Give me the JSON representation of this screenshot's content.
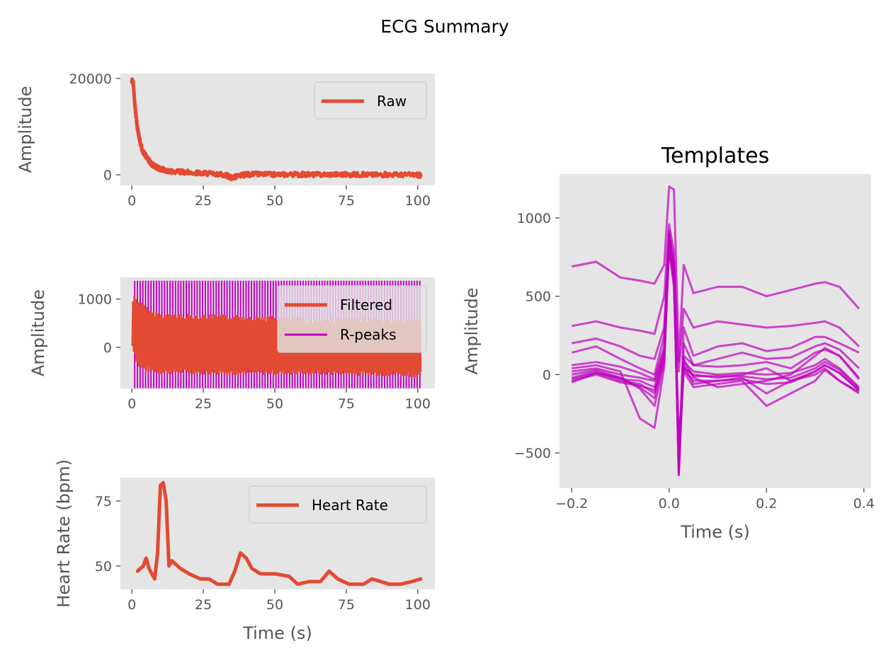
{
  "figure": {
    "suptitle": "ECG Summary"
  },
  "chart_data": [
    {
      "id": "raw",
      "type": "line",
      "title": "",
      "xlabel": "",
      "ylabel": "Amplitude",
      "xlim": [
        -4,
        106
      ],
      "ylim": [
        -2200,
        21000
      ],
      "xticks": [
        0,
        25,
        50,
        75,
        100
      ],
      "xtick_labels": [
        "0",
        "25",
        "50",
        "75",
        "100"
      ],
      "yticks": [
        0,
        20000
      ],
      "ytick_labels": [
        "0",
        "20000"
      ],
      "legend_position": "upper-right",
      "series": [
        {
          "name": "Raw",
          "color": "#e24a33",
          "x": [
            0,
            0.5,
            1,
            1.5,
            2,
            2.5,
            3,
            3.5,
            4,
            5,
            6,
            7,
            8,
            9,
            10,
            12,
            14,
            17,
            20,
            25,
            30,
            33,
            35,
            37,
            40,
            45,
            50,
            55,
            60,
            65,
            70,
            75,
            80,
            85,
            90,
            95,
            100,
            101
          ],
          "y": [
            19500,
            19000,
            15000,
            12000,
            9500,
            8000,
            6500,
            5500,
            4800,
            3800,
            2900,
            2200,
            1800,
            1500,
            1200,
            900,
            700,
            600,
            500,
            300,
            150,
            -100,
            -600,
            -300,
            100,
            100,
            50,
            100,
            50,
            50,
            100,
            50,
            50,
            0,
            50,
            0,
            0,
            -200
          ]
        }
      ]
    },
    {
      "id": "filtered",
      "type": "line",
      "title": "",
      "xlabel": "",
      "ylabel": "Amplitude",
      "xlim": [
        -4,
        106
      ],
      "ylim": [
        -850,
        1450
      ],
      "xticks": [
        0,
        25,
        50,
        75,
        100
      ],
      "xtick_labels": [
        "0",
        "25",
        "50",
        "75",
        "100"
      ],
      "yticks": [
        0,
        1000
      ],
      "ytick_labels": [
        "0",
        "1000"
      ],
      "legend_position": "upper-right",
      "series": [
        {
          "name": "Filtered",
          "color": "#e24a33",
          "x": [
            0,
            1,
            2,
            4,
            6,
            10,
            20,
            30,
            40,
            50,
            60,
            70,
            80,
            90,
            100,
            101
          ],
          "upper": [
            950,
            1100,
            1000,
            900,
            800,
            720,
            700,
            680,
            680,
            650,
            620,
            620,
            620,
            600,
            620,
            600
          ],
          "lower": [
            0,
            -150,
            -400,
            -500,
            -520,
            -560,
            -560,
            -580,
            -580,
            -580,
            -580,
            -580,
            -600,
            -600,
            -620,
            -620
          ]
        },
        {
          "name": "R-peaks",
          "color": "#bf00bf",
          "markers_from": 1,
          "markers_to": 101,
          "marker_spacing": 0.95,
          "marker_min": -850,
          "marker_max": 1380
        }
      ]
    },
    {
      "id": "heart_rate",
      "type": "line",
      "title": "",
      "xlabel": "Time (s)",
      "ylabel": "Heart Rate (bpm)",
      "xlim": [
        -4,
        106
      ],
      "ylim": [
        41,
        84
      ],
      "xticks": [
        0,
        25,
        50,
        75,
        100
      ],
      "xtick_labels": [
        "0",
        "25",
        "50",
        "75",
        "100"
      ],
      "yticks": [
        50,
        75
      ],
      "ytick_labels": [
        "50",
        "75"
      ],
      "legend_position": "upper-right",
      "series": [
        {
          "name": "Heart Rate",
          "color": "#e24a33",
          "x": [
            2,
            4,
            5,
            6,
            7,
            8,
            9,
            10,
            11,
            12,
            13,
            14,
            15,
            17,
            20,
            24,
            27,
            30,
            34,
            36,
            38,
            40,
            42,
            45,
            50,
            55,
            58,
            62,
            66,
            69,
            72,
            76,
            81,
            84,
            87,
            90,
            94,
            98,
            101
          ],
          "y": [
            48,
            50,
            53,
            49,
            47,
            45,
            55,
            81,
            82,
            75,
            50,
            52,
            51,
            49,
            47,
            45,
            45,
            43,
            43,
            48,
            55,
            53,
            49,
            47,
            47,
            46,
            43,
            44,
            44,
            48,
            45,
            43,
            43,
            45,
            44,
            43,
            43,
            44,
            45
          ]
        }
      ]
    },
    {
      "id": "templates",
      "type": "line",
      "title": "Templates",
      "xlabel": "Time (s)",
      "ylabel": "Amplitude",
      "xlim": [
        -0.225,
        0.415
      ],
      "ylim": [
        -725,
        1280
      ],
      "xticks": [
        -0.2,
        0.0,
        0.2,
        0.4
      ],
      "xtick_labels": [
        "−0.2",
        "0.0",
        "0.2",
        "0.4"
      ],
      "yticks": [
        -500,
        0,
        500,
        1000
      ],
      "ytick_labels": [
        "−500",
        "0",
        "500",
        "1000"
      ],
      "line_color": "#bf00bf",
      "template_x": [
        -0.2,
        -0.15,
        -0.1,
        -0.06,
        -0.03,
        -0.01,
        0.0,
        0.01,
        0.02,
        0.03,
        0.05,
        0.1,
        0.15,
        0.2,
        0.25,
        0.3,
        0.32,
        0.35,
        0.39
      ],
      "templates": [
        [
          690,
          720,
          620,
          600,
          580,
          700,
          1200,
          1180,
          80,
          700,
          520,
          560,
          560,
          500,
          540,
          580,
          590,
          560,
          420
        ],
        [
          310,
          340,
          300,
          280,
          260,
          500,
          960,
          780,
          20,
          420,
          300,
          340,
          320,
          300,
          310,
          330,
          340,
          300,
          180
        ],
        [
          200,
          230,
          180,
          120,
          100,
          300,
          880,
          700,
          -620,
          300,
          120,
          180,
          200,
          150,
          170,
          240,
          240,
          200,
          140
        ],
        [
          140,
          180,
          100,
          40,
          0,
          250,
          900,
          650,
          -640,
          200,
          60,
          100,
          140,
          100,
          110,
          180,
          200,
          160,
          40
        ],
        [
          40,
          60,
          20,
          -280,
          -340,
          50,
          920,
          700,
          -640,
          100,
          -20,
          -80,
          -60,
          -40,
          0,
          120,
          170,
          120,
          -20
        ],
        [
          0,
          30,
          -20,
          -80,
          -150,
          100,
          870,
          640,
          -560,
          40,
          0,
          -20,
          0,
          40,
          -40,
          20,
          60,
          10,
          -100
        ],
        [
          -50,
          10,
          -40,
          -60,
          -120,
          120,
          850,
          600,
          -520,
          60,
          -60,
          -40,
          -20,
          -120,
          -40,
          0,
          40,
          -40,
          -120
        ],
        [
          20,
          40,
          0,
          -20,
          -40,
          150,
          860,
          620,
          -500,
          80,
          20,
          0,
          10,
          0,
          10,
          60,
          100,
          40,
          -80
        ],
        [
          -20,
          20,
          -30,
          -40,
          -80,
          140,
          840,
          600,
          -480,
          60,
          -10,
          -10,
          -10,
          -30,
          -20,
          40,
          80,
          30,
          -90
        ],
        [
          -40,
          0,
          -50,
          -70,
          -100,
          120,
          820,
          580,
          -460,
          30,
          -40,
          -40,
          -30,
          -60,
          -50,
          20,
          60,
          10,
          -100
        ],
        [
          60,
          80,
          50,
          10,
          -30,
          180,
          900,
          680,
          -600,
          120,
          60,
          50,
          60,
          80,
          40,
          140,
          160,
          120,
          -30
        ],
        [
          -30,
          10,
          -20,
          -90,
          -200,
          80,
          800,
          560,
          -420,
          20,
          -80,
          -60,
          -40,
          -200,
          -120,
          -40,
          30,
          -40,
          -110
        ]
      ]
    }
  ]
}
